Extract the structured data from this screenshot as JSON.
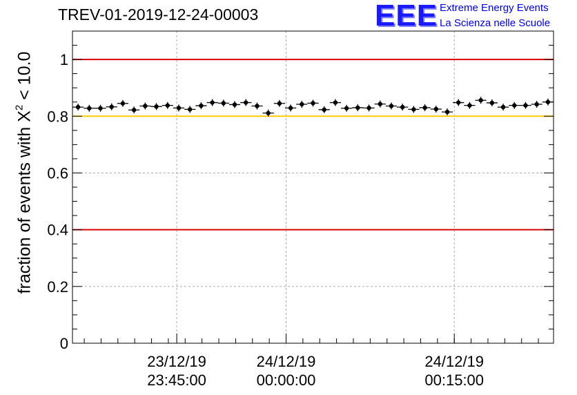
{
  "header": {
    "title": "TREV-01-2019-12-24-00003",
    "logo_text": "EEE",
    "logo_line1": "Extreme Energy Events",
    "logo_line2": "La Scienza nelle Scuole"
  },
  "chart_data": {
    "type": "scatter",
    "title": "TREV-01-2019-12-24-00003",
    "xlabel": "",
    "ylabel_main": "fraction of events with X",
    "ylabel_sup": "2",
    "ylabel_tail": " < 10.0",
    "ylim": [
      0,
      1.1
    ],
    "yticks": [
      "0",
      "0.2",
      "0.4",
      "0.6",
      "0.8",
      "1"
    ],
    "ytick_values": [
      0,
      0.2,
      0.4,
      0.6,
      0.8,
      1.0
    ],
    "xlim_minutes": [
      -12.7,
      15.9
    ],
    "xticks": [
      {
        "minutes": -6.5,
        "line1": "23/12/19",
        "line2": "23:45:00"
      },
      {
        "minutes": 0,
        "line1": "24/12/19",
        "line2": "00:00:00"
      },
      {
        "minutes": 10,
        "line1": "24/12/19",
        "line2": "00:15:00"
      }
    ],
    "grid": true,
    "reference_lines": [
      {
        "y": 1.0,
        "color": "#dd0000"
      },
      {
        "y": 0.8,
        "color": "#ffcc00"
      },
      {
        "y": 0.4,
        "color": "#dd0000"
      }
    ],
    "series": [
      {
        "name": "fraction",
        "color": "#000000",
        "values": [
          0.832,
          0.828,
          0.828,
          0.833,
          0.845,
          0.822,
          0.836,
          0.834,
          0.838,
          0.829,
          0.824,
          0.837,
          0.848,
          0.846,
          0.841,
          0.848,
          0.836,
          0.811,
          0.845,
          0.829,
          0.842,
          0.846,
          0.823,
          0.848,
          0.828,
          0.83,
          0.829,
          0.843,
          0.836,
          0.832,
          0.824,
          0.83,
          0.825,
          0.815,
          0.848,
          0.838,
          0.856,
          0.847,
          0.832,
          0.838,
          0.838,
          0.842,
          0.85
        ]
      }
    ]
  }
}
